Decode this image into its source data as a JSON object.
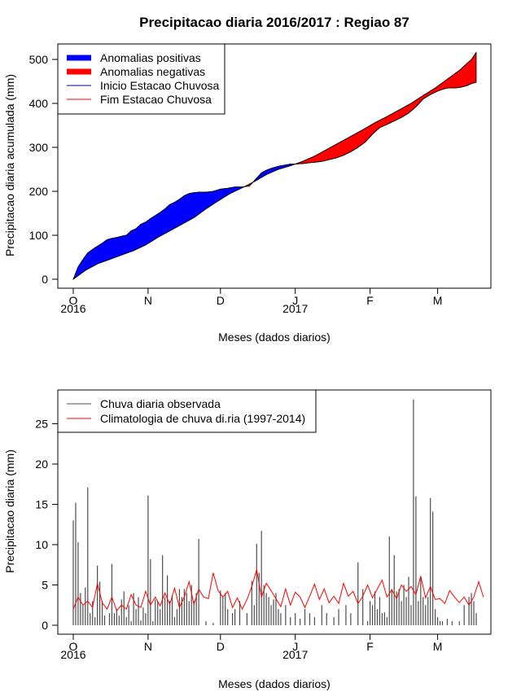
{
  "chart_data": [
    {
      "type": "area",
      "title": "Precipitacao diaria 2016/2017 : Regiao 87",
      "xlabel": "Meses (dados diarios)",
      "ylabel": "Precipitacao diaria acumulada (mm)",
      "ylim": [
        0,
        520
      ],
      "y_ticks": [
        0,
        100,
        200,
        300,
        400,
        500
      ],
      "x_range_days": [
        0,
        170
      ],
      "month_ticks": [
        {
          "label": "O",
          "day": 0,
          "year": "2016"
        },
        {
          "label": "N",
          "day": 31
        },
        {
          "label": "D",
          "day": 61
        },
        {
          "label": "J",
          "day": 92,
          "year": "2017"
        },
        {
          "label": "F",
          "day": 123
        },
        {
          "label": "M",
          "day": 151
        }
      ],
      "legend": [
        {
          "label": "Anomalias positivas",
          "color": "#0000ff",
          "style": "thick"
        },
        {
          "label": "Anomalias negativas",
          "color": "#ff0000",
          "style": "thick"
        },
        {
          "label": "Inicio Estacao Chuvosa",
          "color": "#00008b",
          "style": "line"
        },
        {
          "label": "Fim Estacao Chuvosa",
          "color": "#ff0000",
          "style": "line"
        }
      ],
      "observed_cumulative": {
        "day": [
          0,
          2,
          4,
          6,
          8,
          10,
          12,
          14,
          16,
          18,
          20,
          22,
          24,
          26,
          28,
          30,
          32,
          34,
          36,
          38,
          40,
          42,
          44,
          46,
          48,
          50,
          52,
          55,
          58,
          61,
          64,
          67,
          70,
          73,
          74,
          76,
          78,
          80,
          82,
          85,
          88,
          90,
          92,
          95,
          98,
          100,
          103,
          106,
          109,
          112,
          115,
          118,
          121,
          124,
          127,
          130,
          133,
          136,
          139,
          142,
          145,
          148,
          151,
          153,
          155,
          157,
          160,
          163,
          165,
          167
        ],
        "value": [
          0,
          28,
          45,
          60,
          68,
          75,
          82,
          90,
          93,
          95,
          98,
          100,
          110,
          115,
          125,
          130,
          138,
          145,
          152,
          160,
          170,
          175,
          182,
          190,
          195,
          197,
          198,
          198,
          200,
          205,
          207,
          210,
          210,
          212,
          218,
          230,
          242,
          248,
          252,
          257,
          260,
          262,
          262,
          263,
          265,
          266,
          268,
          272,
          276,
          282,
          290,
          300,
          312,
          330,
          345,
          352,
          360,
          368,
          378,
          392,
          410,
          420,
          428,
          432,
          435,
          435,
          436,
          440,
          445,
          448
        ]
      },
      "climatology_cumulative": {
        "day": [
          0,
          5,
          10,
          15,
          20,
          25,
          30,
          35,
          40,
          45,
          50,
          55,
          60,
          65,
          70,
          75,
          80,
          85,
          90,
          95,
          100,
          105,
          110,
          115,
          120,
          125,
          130,
          135,
          140,
          145,
          150,
          155,
          160,
          165,
          167
        ],
        "value": [
          0,
          20,
          35,
          45,
          55,
          65,
          78,
          95,
          110,
          125,
          140,
          160,
          178,
          195,
          208,
          222,
          238,
          250,
          258,
          268,
          280,
          295,
          310,
          325,
          340,
          356,
          370,
          385,
          400,
          418,
          435,
          455,
          475,
          500,
          516
        ]
      }
    },
    {
      "type": "bar",
      "xlabel": "Meses (dados diarios)",
      "ylabel": "Precipitacao diaria (mm)",
      "ylim": [
        0,
        28
      ],
      "y_ticks": [
        0,
        5,
        10,
        15,
        20,
        25
      ],
      "x_range_days": [
        0,
        170
      ],
      "month_ticks": [
        {
          "label": "O",
          "day": 0,
          "year": "2016"
        },
        {
          "label": "N",
          "day": 31
        },
        {
          "label": "D",
          "day": 61
        },
        {
          "label": "J",
          "day": 92,
          "year": "2017"
        },
        {
          "label": "F",
          "day": 123
        },
        {
          "label": "M",
          "day": 151
        }
      ],
      "legend": [
        {
          "label": "Chuva diaria observada",
          "color": "#4d4d4d",
          "style": "line"
        },
        {
          "label": "Climatologia de chuva di.ria (1997-2014)",
          "color": "#ff0000",
          "style": "line"
        }
      ],
      "observed_daily": {
        "day": [
          0,
          1,
          2,
          3,
          4,
          5,
          6,
          7,
          8,
          9,
          10,
          11,
          12,
          13,
          15,
          16,
          17,
          18,
          19,
          20,
          21,
          22,
          23,
          24,
          25,
          26,
          27,
          28,
          29,
          30,
          31,
          32,
          33,
          34,
          35,
          36,
          37,
          38,
          39,
          40,
          41,
          42,
          43,
          44,
          45,
          46,
          47,
          48,
          49,
          50,
          51,
          52,
          55,
          58,
          61,
          62,
          63,
          64,
          66,
          67,
          69,
          72,
          74,
          75,
          76,
          77,
          78,
          79,
          80,
          81,
          82,
          83,
          84,
          85,
          86,
          88,
          90,
          92,
          94,
          96,
          98,
          100,
          103,
          105,
          108,
          110,
          113,
          115,
          118,
          120,
          122,
          123,
          124,
          125,
          126,
          127,
          128,
          129,
          130,
          131,
          132,
          133,
          134,
          135,
          136,
          137,
          138,
          139,
          140,
          141,
          142,
          143,
          144,
          145,
          146,
          147,
          148,
          149,
          150,
          151,
          152,
          153,
          155,
          157,
          160,
          162,
          164,
          165,
          166,
          167
        ],
        "value": [
          13,
          15.2,
          10.3,
          4,
          2.5,
          4.7,
          17.1,
          1.5,
          3,
          1,
          7.4,
          5.4,
          3,
          1.2,
          1.5,
          7.6,
          1.5,
          2,
          1.2,
          3.2,
          4.2,
          1,
          2.5,
          0.5,
          4,
          2,
          3.5,
          0.6,
          2.2,
          1.5,
          16.1,
          8.2,
          0.5,
          3.2,
          3,
          2,
          8.7,
          3.5,
          6.2,
          3,
          3.7,
          1,
          2,
          4.5,
          3.5,
          4.5,
          4,
          3,
          5,
          3,
          4,
          10.7,
          0.5,
          0.3,
          4.3,
          3.5,
          4,
          2,
          1.5,
          2,
          3,
          1.5,
          5.5,
          2.5,
          10.1,
          6.5,
          11.7,
          5,
          4,
          3.5,
          2.5,
          3.2,
          4,
          2,
          1.5,
          2.5,
          1,
          1.5,
          0.8,
          2,
          1.5,
          1,
          2.5,
          1.5,
          1,
          2,
          2.5,
          1.5,
          7.8,
          4.5,
          0.5,
          3,
          2.5,
          4.2,
          2,
          3.5,
          1.5,
          1.6,
          1,
          11,
          4.5,
          8.7,
          4.2,
          4.5,
          3,
          5,
          3.5,
          6,
          2.5,
          28,
          16,
          3,
          6,
          3.5,
          2.5,
          3.5,
          15.8,
          14.1,
          2,
          1,
          0.5,
          0.5,
          0.8,
          0.5,
          0.5,
          2.5,
          3.5,
          4,
          3,
          1.5
        ]
      },
      "climatology_daily": {
        "day": [
          0,
          2,
          4,
          6,
          8,
          10,
          12,
          14,
          16,
          18,
          20,
          22,
          24,
          26,
          28,
          30,
          32,
          34,
          36,
          38,
          40,
          42,
          44,
          46,
          48,
          50,
          52,
          54,
          56,
          58,
          60,
          62,
          64,
          66,
          68,
          70,
          72,
          74,
          76,
          78,
          80,
          82,
          84,
          86,
          88,
          90,
          92,
          94,
          96,
          98,
          100,
          102,
          104,
          106,
          108,
          110,
          112,
          114,
          116,
          118,
          120,
          122,
          124,
          126,
          128,
          130,
          132,
          134,
          136,
          138,
          140,
          142,
          144,
          146,
          148,
          150,
          152,
          154,
          156,
          158,
          160,
          162,
          164,
          166,
          168,
          170
        ],
        "value": [
          2,
          3.5,
          2.5,
          3,
          2.2,
          5.2,
          2.8,
          2,
          3.5,
          1.8,
          2.5,
          2,
          3.8,
          2.5,
          2.2,
          4.2,
          2.5,
          3.5,
          2.4,
          4,
          2.6,
          4.6,
          2.2,
          3.5,
          5.4,
          2.6,
          4.5,
          3.5,
          3.3,
          6.5,
          4.3,
          3.5,
          4.2,
          2.2,
          3.4,
          2,
          3.2,
          4.8,
          6.9,
          3.5,
          5.2,
          4.3,
          3.3,
          2.3,
          4.5,
          2.5,
          4.1,
          3.5,
          2.2,
          3.6,
          5.1,
          3.2,
          4.5,
          2.8,
          3.6,
          2.7,
          5.2,
          3.6,
          4.2,
          2.7,
          3.6,
          5,
          3.4,
          4.5,
          5.6,
          3.5,
          4.4,
          3.3,
          5,
          4.2,
          4.8,
          3.8,
          6.1,
          3.4,
          4.8,
          3.2,
          3.3,
          2.7,
          4.3,
          3.5,
          2.8,
          3.5,
          2.5,
          3.5,
          5.4,
          3.5
        ]
      }
    }
  ]
}
